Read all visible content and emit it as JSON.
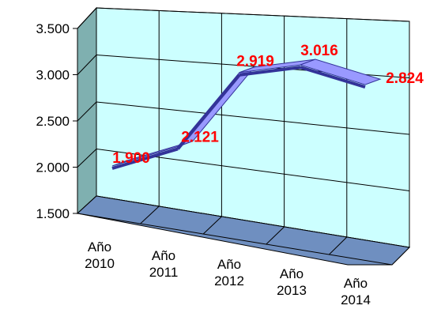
{
  "chart_data": {
    "type": "line",
    "title": "",
    "xlabel": "",
    "ylabel": "",
    "categories": [
      {
        "line1": "Año",
        "line2": "2010"
      },
      {
        "line1": "Año",
        "line2": "2011"
      },
      {
        "line1": "Año",
        "line2": "2012"
      },
      {
        "line1": "Año",
        "line2": "2013"
      },
      {
        "line1": "Año",
        "line2": "2014"
      }
    ],
    "series": [
      {
        "values": [
          1900,
          2121,
          2919,
          3016,
          2824
        ],
        "labels": [
          "1.900",
          "2.121",
          "2.919",
          "3.016",
          "2.824"
        ]
      }
    ],
    "ylim": [
      1500,
      3500
    ],
    "yticks": [
      {
        "value": 1500,
        "label": "1.500"
      },
      {
        "value": 2000,
        "label": "2.000"
      },
      {
        "value": 2500,
        "label": "2.500"
      },
      {
        "value": 3000,
        "label": "3.000"
      },
      {
        "value": 3500,
        "label": "3.500"
      }
    ],
    "grid": true,
    "colors": {
      "back_wall": "#ccffff",
      "side_wall": "#7fb0b0",
      "floor": "#6f8fc0",
      "ribbon_top": "#9999ff",
      "ribbon_front": "#333399",
      "data_label": "#ff0000",
      "grid": "#000000"
    }
  }
}
